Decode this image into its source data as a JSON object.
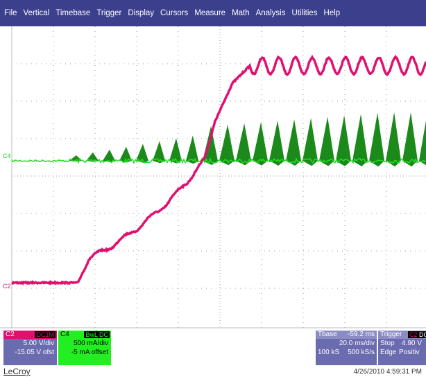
{
  "menu": [
    "File",
    "Vertical",
    "Timebase",
    "Trigger",
    "Display",
    "Cursors",
    "Measure",
    "Math",
    "Analysis",
    "Utilities",
    "Help"
  ],
  "markers": {
    "c4": "C4",
    "c2": "C2"
  },
  "channels": [
    {
      "name": "C2",
      "badge": "DC1M",
      "scale": "5.00 V/div",
      "offset": "-15.05 V ofst"
    },
    {
      "name": "C4",
      "badge1": "BwL",
      "badge2": "DC",
      "scale": "500 mA/div",
      "offset": "-5 mA offset"
    }
  ],
  "timebase": {
    "label": "Tbase",
    "delay": "-59.2 ms",
    "rate": "20.0 ms/div",
    "points": "100 kS",
    "sample": "500 kS/s"
  },
  "trigger": {
    "label": "Trigger",
    "badge1": "C2",
    "badge2": "DC",
    "level": "4.90 V",
    "mode": "Stop",
    "type": "Edge",
    "slope": "Positiv"
  },
  "footer": {
    "brand": "LeCroy",
    "timestamp": "4/26/2010 4:59:31 PM"
  }
}
